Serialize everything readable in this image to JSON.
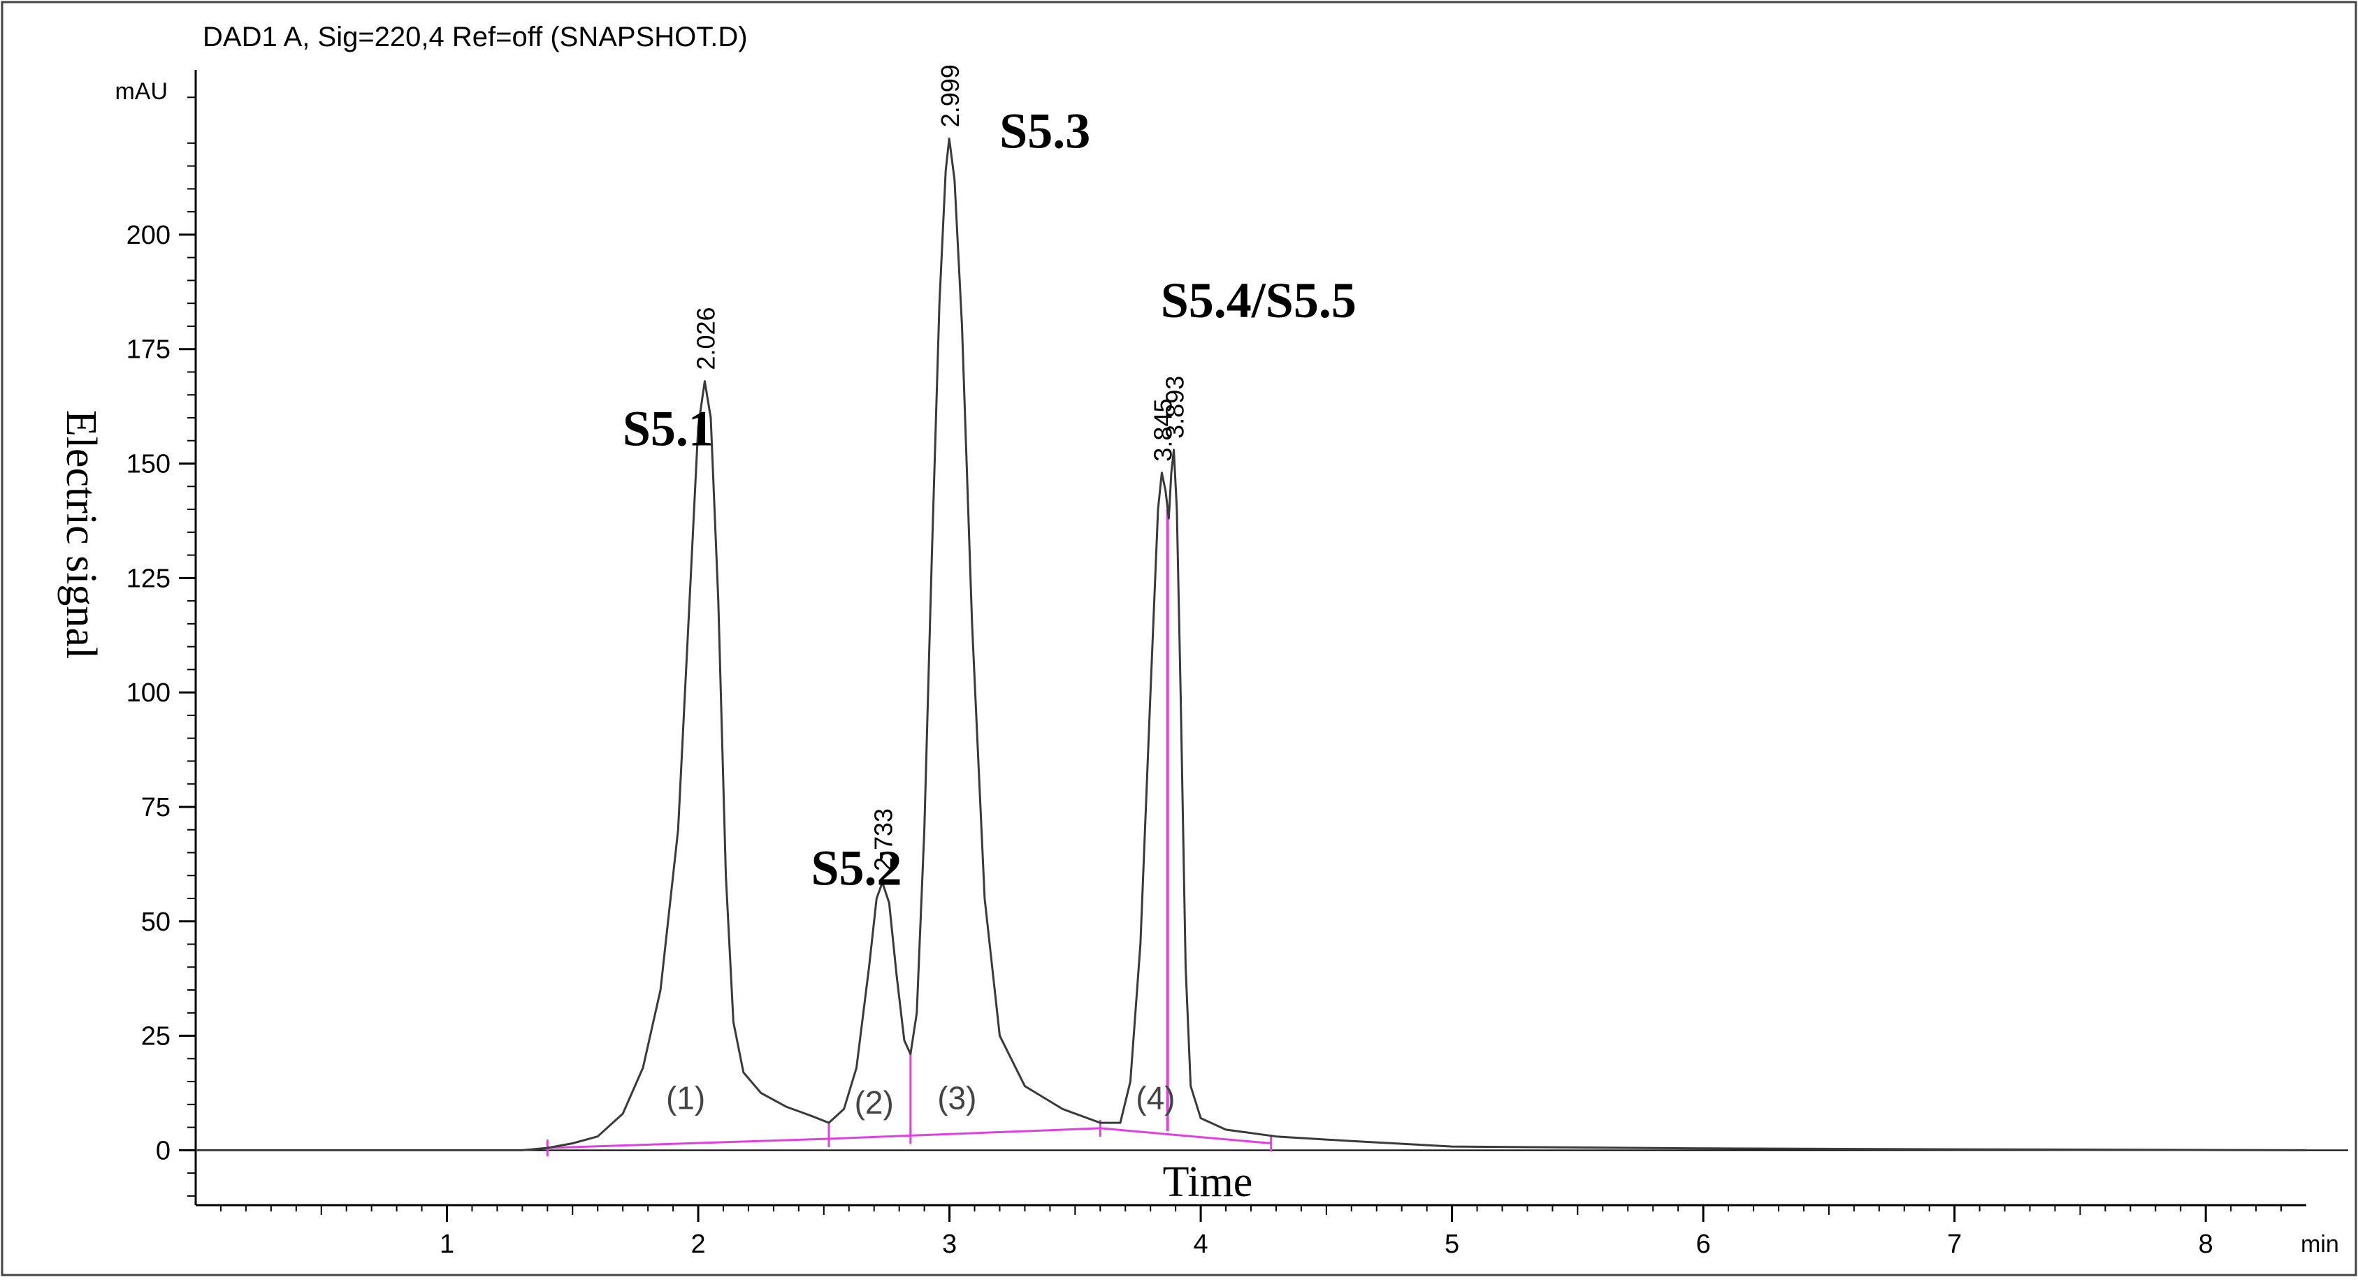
{
  "chart_data": {
    "type": "line",
    "title": "DAD1 A, Sig=220,4 Ref=off (SNAPSHOT.D)",
    "unit_label": "mAU",
    "x_unit_label": "min",
    "xlabel": "Time",
    "ylabel": "Electric signal",
    "xlim": [
      0,
      8.4
    ],
    "ylim": [
      -12,
      236
    ],
    "x_ticks": [
      1,
      2,
      3,
      4,
      5,
      6,
      7,
      8
    ],
    "y_ticks": [
      0,
      25,
      50,
      75,
      100,
      125,
      150,
      175,
      200
    ],
    "grid": false,
    "colors": {
      "trace": "#3a3a3a",
      "baseline": "#e040e0",
      "axis": "#000000",
      "frame": "#444444"
    },
    "series": [
      {
        "points": [
          [
            0.0,
            0.0
          ],
          [
            1.3,
            0.0
          ],
          [
            1.4,
            0.5
          ],
          [
            1.5,
            1.5
          ],
          [
            1.6,
            3.0
          ],
          [
            1.7,
            8.0
          ],
          [
            1.78,
            18.0
          ],
          [
            1.85,
            35.0
          ],
          [
            1.92,
            70.0
          ],
          [
            1.97,
            125.0
          ],
          [
            2.0,
            158.0
          ],
          [
            2.026,
            168.0
          ],
          [
            2.05,
            160.0
          ],
          [
            2.08,
            120.0
          ],
          [
            2.11,
            60.0
          ],
          [
            2.14,
            28.0
          ],
          [
            2.18,
            17.0
          ],
          [
            2.25,
            12.5
          ],
          [
            2.35,
            9.5
          ],
          [
            2.45,
            7.5
          ],
          [
            2.52,
            6.0
          ],
          [
            2.58,
            9.0
          ],
          [
            2.63,
            18.0
          ],
          [
            2.68,
            40.0
          ],
          [
            2.71,
            55.0
          ],
          [
            2.733,
            58.5
          ],
          [
            2.76,
            54.0
          ],
          [
            2.79,
            38.0
          ],
          [
            2.82,
            24.0
          ],
          [
            2.845,
            21.0
          ],
          [
            2.87,
            30.0
          ],
          [
            2.9,
            70.0
          ],
          [
            2.93,
            130.0
          ],
          [
            2.96,
            185.0
          ],
          [
            2.985,
            214.0
          ],
          [
            2.999,
            221.0
          ],
          [
            3.02,
            212.0
          ],
          [
            3.05,
            180.0
          ],
          [
            3.09,
            115.0
          ],
          [
            3.14,
            55.0
          ],
          [
            3.2,
            25.0
          ],
          [
            3.3,
            14.0
          ],
          [
            3.45,
            9.0
          ],
          [
            3.6,
            6.0
          ],
          [
            3.68,
            6.0
          ],
          [
            3.72,
            15.0
          ],
          [
            3.76,
            45.0
          ],
          [
            3.8,
            100.0
          ],
          [
            3.83,
            140.0
          ],
          [
            3.845,
            148.0
          ],
          [
            3.86,
            144.0
          ],
          [
            3.873,
            138.0
          ],
          [
            3.883,
            148.0
          ],
          [
            3.893,
            153.0
          ],
          [
            3.905,
            140.0
          ],
          [
            3.92,
            100.0
          ],
          [
            3.94,
            40.0
          ],
          [
            3.96,
            14.0
          ],
          [
            4.0,
            7.0
          ],
          [
            4.1,
            4.5
          ],
          [
            4.3,
            3.0
          ],
          [
            4.6,
            2.0
          ],
          [
            5.0,
            0.8
          ],
          [
            6.0,
            0.4
          ],
          [
            7.0,
            0.2
          ],
          [
            8.4,
            0.0
          ]
        ]
      }
    ],
    "baselines": [
      {
        "segment": [
          [
            1.4,
            0.5
          ],
          [
            2.52,
            2.5
          ]
        ],
        "tick_x": 2.52
      },
      {
        "segment": [
          [
            2.52,
            2.5
          ],
          [
            2.845,
            3.2
          ]
        ],
        "tick_x": 2.845
      },
      {
        "segment": [
          [
            2.845,
            3.2
          ],
          [
            3.6,
            4.8
          ]
        ],
        "tick_x": 3.6
      },
      {
        "segment": [
          [
            3.6,
            4.8
          ],
          [
            4.28,
            1.5
          ]
        ],
        "tick_x": 4.28
      }
    ],
    "split_line": {
      "x": 3.868,
      "y_top": 140
    },
    "peaks": [
      {
        "rt": "2.026",
        "x": 2.026,
        "y": 168.0
      },
      {
        "rt": "2.733",
        "x": 2.733,
        "y": 58.5
      },
      {
        "rt": "2.999",
        "x": 2.999,
        "y": 221.0
      },
      {
        "rt": "3.845",
        "x": 3.845,
        "y": 148.0
      },
      {
        "rt": "3.893",
        "x": 3.893,
        "y": 153.0
      }
    ],
    "peak_names": [
      {
        "text": "S5.1",
        "x": 1.88,
        "y": 154
      },
      {
        "text": "S5.2",
        "x": 2.63,
        "y": 58
      },
      {
        "text": "S5.3",
        "x": 3.38,
        "y": 219
      },
      {
        "text": "S5.4/S5.5",
        "x": 4.23,
        "y": 182
      }
    ],
    "region_labels": [
      {
        "text": "(1)",
        "x": 1.95,
        "y": 9
      },
      {
        "text": "(2)",
        "x": 2.7,
        "y": 8
      },
      {
        "text": "(3)",
        "x": 3.03,
        "y": 9
      },
      {
        "text": "(4)",
        "x": 3.82,
        "y": 9
      }
    ]
  }
}
